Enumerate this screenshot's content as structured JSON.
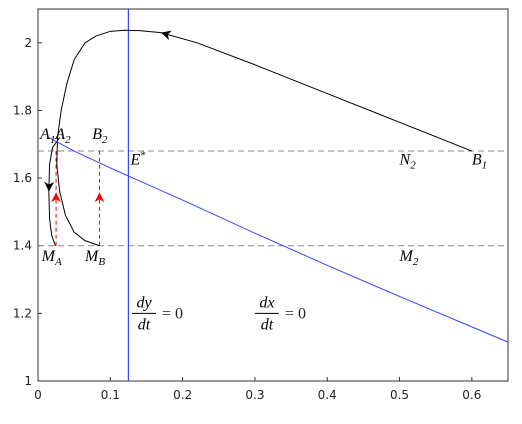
{
  "chart_data": {
    "type": "line",
    "xlim": [
      0,
      0.65
    ],
    "ylim": [
      1,
      2.1
    ],
    "xticks": [
      0,
      0.1,
      0.2,
      0.3,
      0.4,
      0.5,
      0.6
    ],
    "yticks": [
      1,
      1.2,
      1.4,
      1.6,
      1.8,
      2
    ],
    "series": [
      {
        "color": "#000000",
        "x": [
          0.6,
          0.5,
          0.4,
          0.3,
          0.22,
          0.17,
          0.14,
          0.12,
          0.1,
          0.08,
          0.065,
          0.05,
          0.04,
          0.032,
          0.027,
          0.026,
          0.03,
          0.038,
          0.05,
          0.065,
          0.085
        ],
        "values": [
          1.68,
          1.765,
          1.85,
          1.935,
          2.0,
          2.03,
          2.036,
          2.037,
          2.034,
          2.02,
          2.0,
          1.95,
          1.88,
          1.8,
          1.72,
          1.64,
          1.56,
          1.49,
          1.44,
          1.415,
          1.4
        ]
      },
      {
        "color": "#000000",
        "x": [
          0.03,
          0.02,
          0.016,
          0.015,
          0.016,
          0.019,
          0.024
        ],
        "values": [
          1.72,
          1.69,
          1.64,
          1.56,
          1.48,
          1.43,
          1.4
        ]
      },
      {
        "color": "#3344ff",
        "x": [
          0.015,
          0.05,
          0.1,
          0.2,
          0.3,
          0.4,
          0.5,
          0.6,
          0.65
        ],
        "values": [
          1.72,
          1.68,
          1.63,
          1.535,
          1.437,
          1.342,
          1.25,
          1.16,
          1.115
        ]
      }
    ],
    "vlines": [
      {
        "x": 0.125,
        "color": "#3344ff"
      }
    ],
    "hlines": [
      {
        "y": 1.68,
        "color": "#888888"
      },
      {
        "y": 1.4,
        "color": "#888888"
      }
    ],
    "red_segments": [
      {
        "x": 0.025,
        "y": [
          1.4,
          1.68
        ]
      },
      {
        "x": 0.085,
        "y": [
          1.4,
          1.68
        ]
      }
    ],
    "red_color": "#ff0000",
    "annotations": [
      {
        "text": "A",
        "sub": "1",
        "x": 0.003,
        "y": 1.715
      },
      {
        "text": "A",
        "sub": "2",
        "x": 0.024,
        "y": 1.715
      },
      {
        "text": "B",
        "sub": "2",
        "x": 0.075,
        "y": 1.715
      },
      {
        "text": "E",
        "sup": "*",
        "x": 0.128,
        "y": 1.64
      },
      {
        "text": "N",
        "sub": "2",
        "x": 0.5,
        "y": 1.64
      },
      {
        "text": "B",
        "sub": "1",
        "x": 0.6,
        "y": 1.64
      },
      {
        "text": "M",
        "sub": "A",
        "x": 0.005,
        "y": 1.355
      },
      {
        "text": "M",
        "sub": "B",
        "x": 0.065,
        "y": 1.355
      },
      {
        "text": "M",
        "sub": "2",
        "x": 0.5,
        "y": 1.355
      }
    ],
    "fractions": [
      {
        "num": "dy",
        "den": "dt",
        "rhs": "= 0",
        "x": 0.13,
        "y": 1.2
      },
      {
        "num": "dx",
        "den": "dt",
        "rhs": "= 0",
        "x": 0.3,
        "y": 1.2
      }
    ]
  }
}
